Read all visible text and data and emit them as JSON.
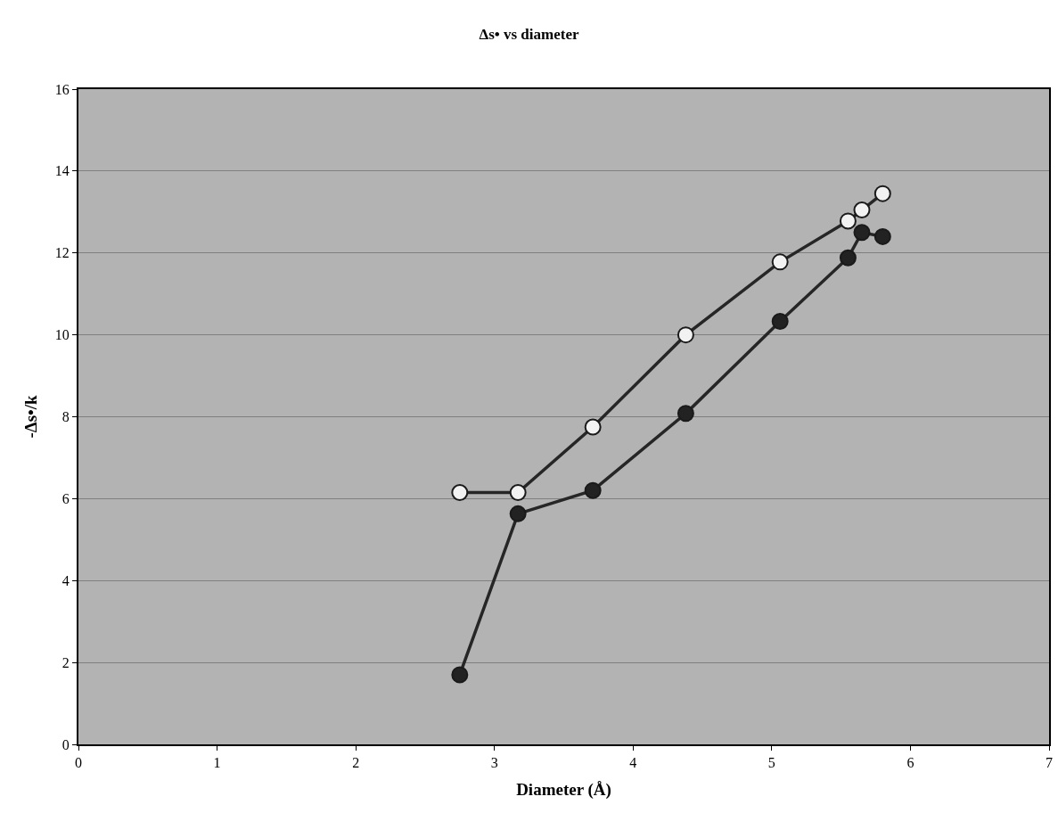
{
  "chart_data": {
    "type": "line",
    "title": "Δs• vs diameter",
    "xlabel": "Diameter (Å)",
    "ylabel": "-Δs•/k",
    "xlim": [
      0,
      7
    ],
    "xticks": [
      0,
      1,
      2,
      3,
      4,
      5,
      6,
      7
    ],
    "ylim": [
      0,
      16
    ],
    "yticks": [
      0,
      2,
      4,
      6,
      8,
      10,
      12,
      14,
      16
    ],
    "grid": "y",
    "marker": "circle",
    "line_style": "solid",
    "series": [
      {
        "color": "#f2f2f2",
        "x": [
          2.75,
          3.17,
          3.71,
          4.38,
          5.06,
          5.55,
          5.65,
          5.8
        ],
        "values": [
          6.15,
          6.15,
          7.75,
          10.0,
          11.78,
          12.78,
          13.05,
          13.45
        ]
      },
      {
        "color": "#222222",
        "x": [
          2.75,
          3.17,
          3.71,
          4.38,
          5.06,
          5.55,
          5.65,
          5.8
        ],
        "values": [
          1.7,
          5.63,
          6.2,
          8.08,
          10.33,
          11.88,
          12.5,
          12.4
        ]
      }
    ]
  }
}
